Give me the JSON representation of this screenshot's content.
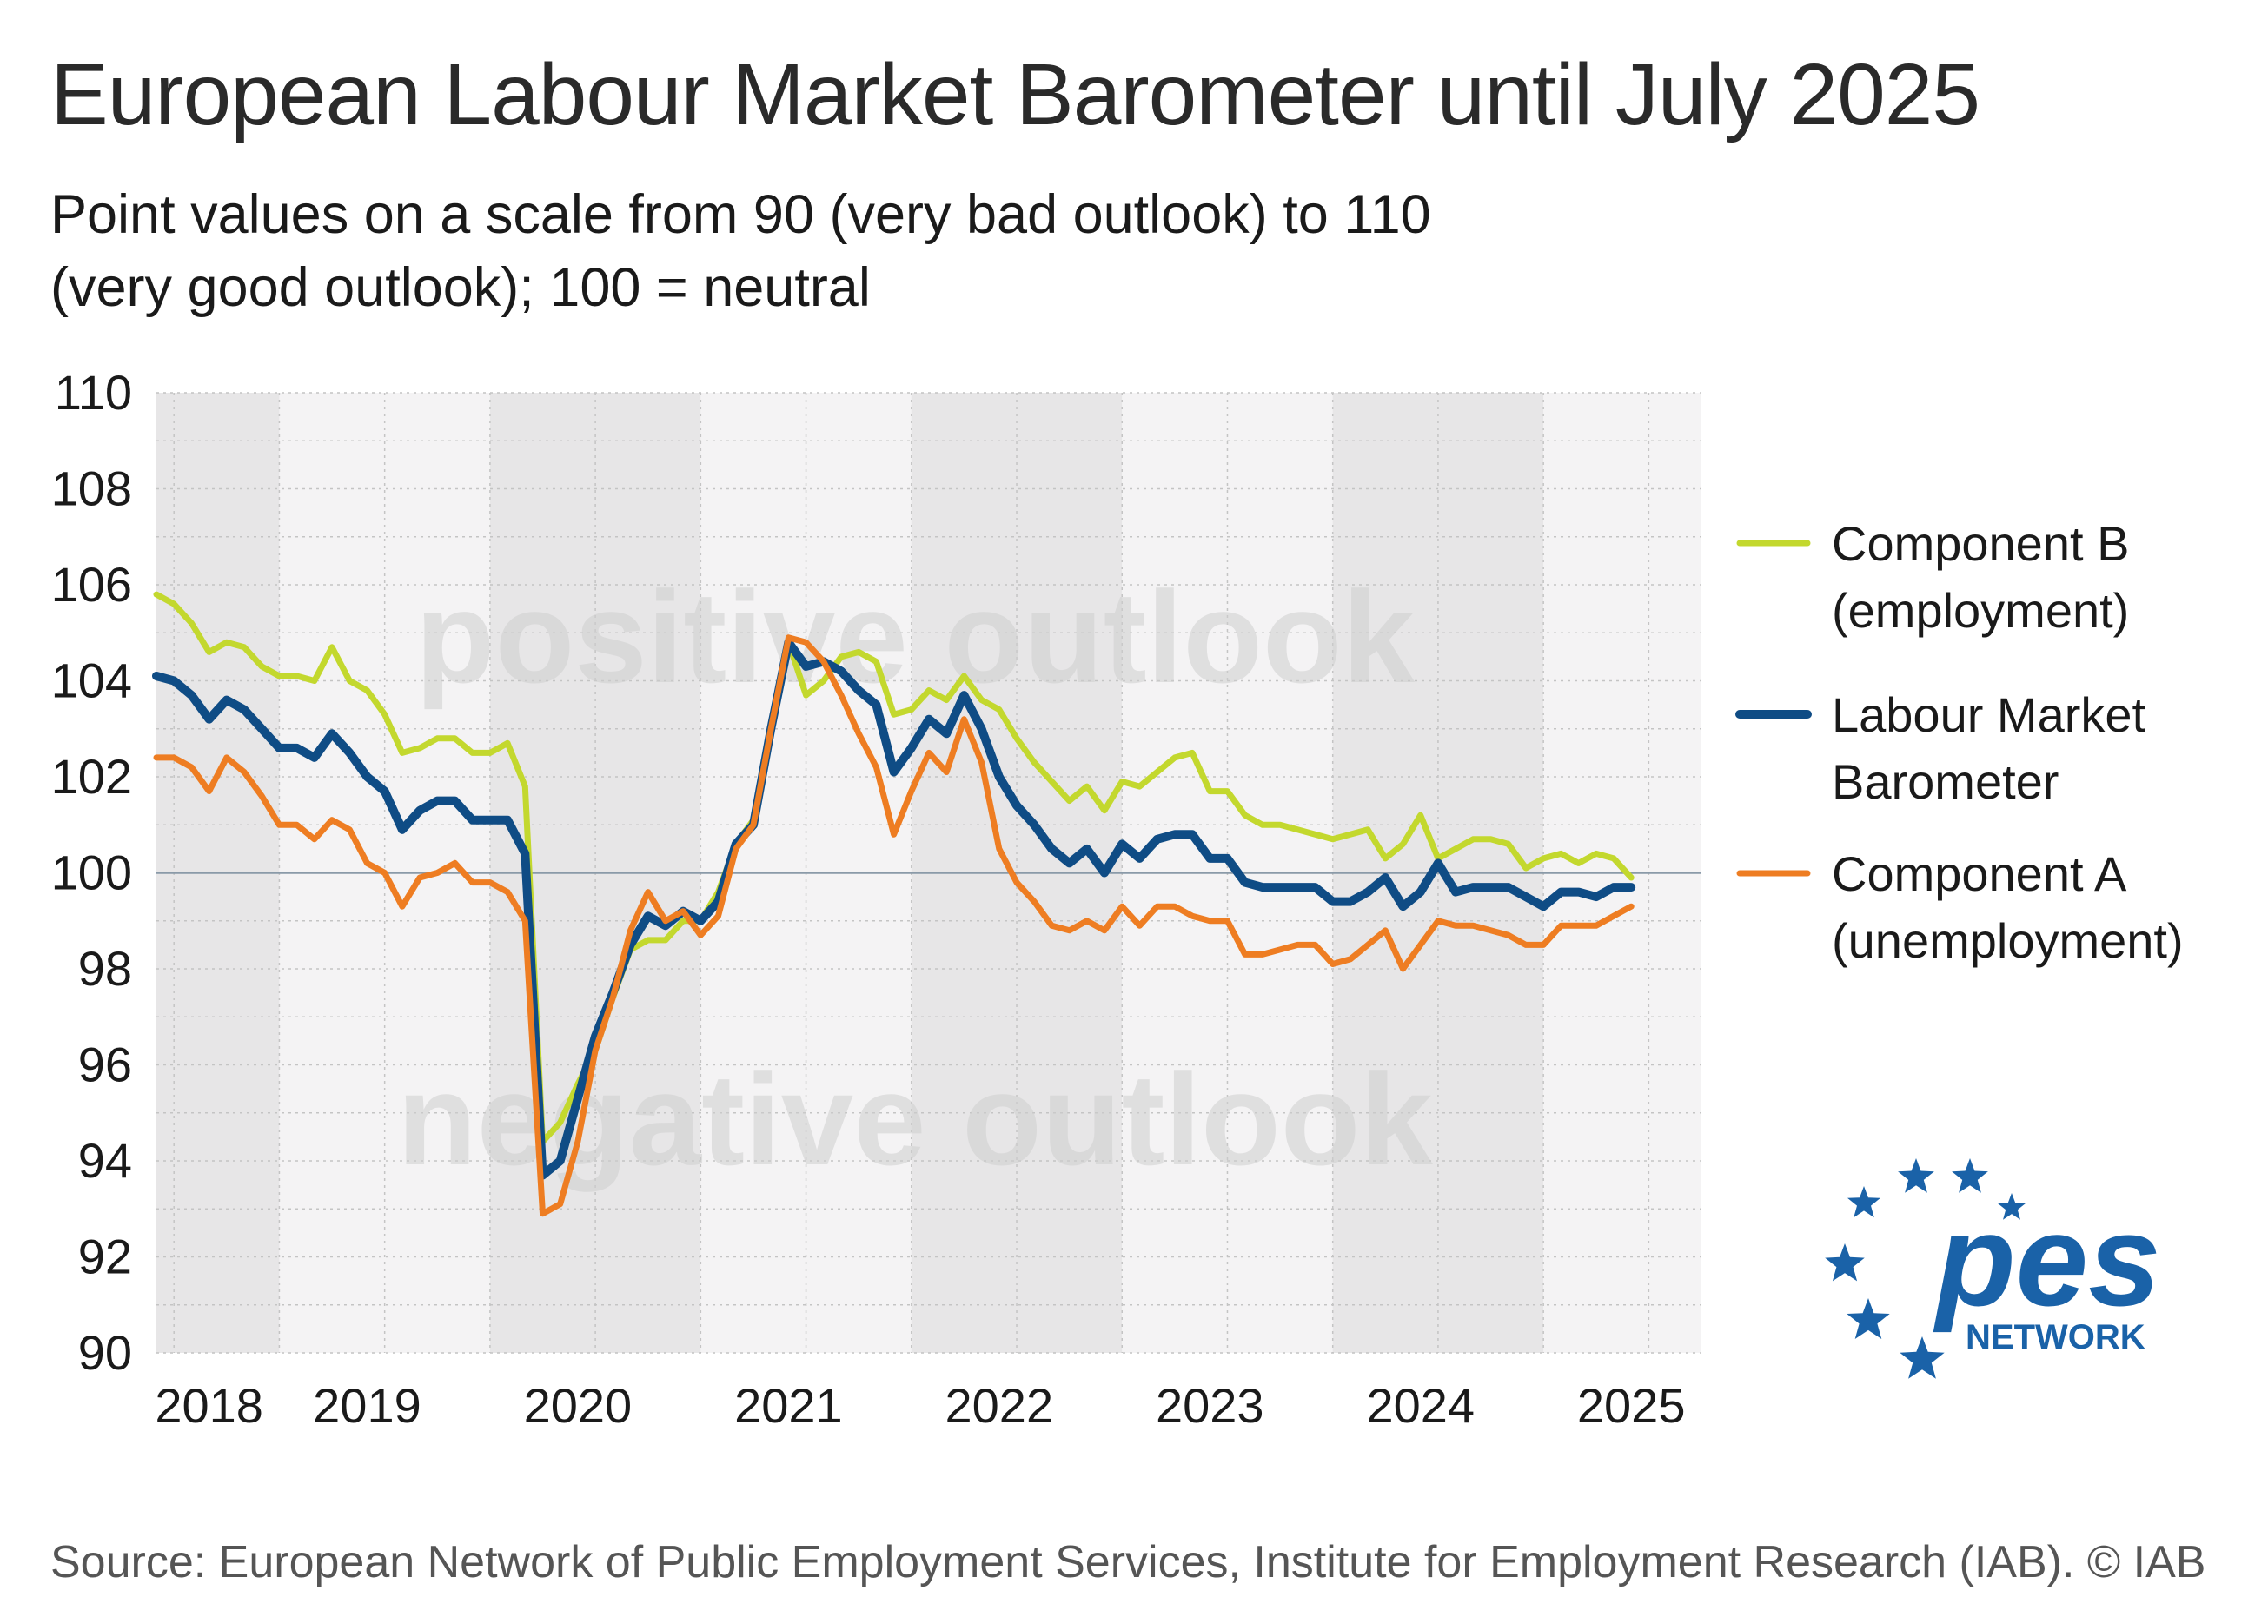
{
  "title": "European Labour Market Barometer until July 2025",
  "subtitle": "Point values on a scale from 90 (very bad outlook) to 110 (very good outlook); 100 = neutral",
  "source": "Source: European Network of Public Employment Services, Institute for Employment Research (IAB). © IAB",
  "watermarks": {
    "positive": "positive outlook",
    "negative": "negative outlook"
  },
  "logo": {
    "text": "pes",
    "subtext": "NETWORK"
  },
  "colors": {
    "component_b": "#c3d82e",
    "barometer": "#0f4c85",
    "component_a": "#ee7d22",
    "reference_line": "#8a9aa8",
    "logo": "#1a62a8"
  },
  "chart_data": {
    "type": "line",
    "ylim": [
      90,
      110
    ],
    "yticks": [
      "90",
      "92",
      "94",
      "96",
      "98",
      "100",
      "102",
      "104",
      "106",
      "108",
      "110"
    ],
    "xlim": [
      "2018-06",
      "2025-10"
    ],
    "xtick_labels": [
      {
        "label": "2018",
        "at": "2018-09"
      },
      {
        "label": "2019",
        "at": "2019-06"
      },
      {
        "label": "2020",
        "at": "2020-06"
      },
      {
        "label": "2021",
        "at": "2021-06"
      },
      {
        "label": "2022",
        "at": "2022-06"
      },
      {
        "label": "2023",
        "at": "2023-06"
      },
      {
        "label": "2024",
        "at": "2024-06"
      },
      {
        "label": "2025",
        "at": "2025-06"
      }
    ],
    "reference_line": 100,
    "grid": true,
    "legend_position": "right",
    "x_start": "2018-06",
    "series": [
      {
        "name": "Component B\n(employment)",
        "key": "component_b",
        "values": [
          105.8,
          105.6,
          105.2,
          104.6,
          104.8,
          104.7,
          104.3,
          104.1,
          104.1,
          104.0,
          104.7,
          104.0,
          103.8,
          103.3,
          102.5,
          102.6,
          102.8,
          102.8,
          102.5,
          102.5,
          102.7,
          101.8,
          94.4,
          94.8,
          95.6,
          96.3,
          97.4,
          98.4,
          98.6,
          98.6,
          99.0,
          99.0,
          99.6,
          100.6,
          101.1,
          103.0,
          104.8,
          103.7,
          104.0,
          104.5,
          104.6,
          104.4,
          103.3,
          103.4,
          103.8,
          103.6,
          104.1,
          103.6,
          103.4,
          102.8,
          102.3,
          101.9,
          101.5,
          101.8,
          101.3,
          101.9,
          101.8,
          102.1,
          102.4,
          102.5,
          101.7,
          101.7,
          101.2,
          101.0,
          101.0,
          100.9,
          100.8,
          100.7,
          100.8,
          100.9,
          100.3,
          100.6,
          101.2,
          100.3,
          100.5,
          100.7,
          100.7,
          100.6,
          100.1,
          100.3,
          100.4,
          100.2,
          100.4,
          100.3,
          99.9
        ]
      },
      {
        "name": "Labour Market\nBarometer",
        "key": "barometer",
        "values": [
          104.1,
          104.0,
          103.7,
          103.2,
          103.6,
          103.4,
          103.0,
          102.6,
          102.6,
          102.4,
          102.9,
          102.5,
          102.0,
          101.7,
          100.9,
          101.3,
          101.5,
          101.5,
          101.1,
          101.1,
          101.1,
          100.4,
          93.7,
          94.0,
          95.3,
          96.6,
          97.5,
          98.5,
          99.1,
          98.9,
          99.2,
          99.0,
          99.4,
          100.6,
          101.0,
          103.0,
          104.8,
          104.3,
          104.4,
          104.2,
          103.8,
          103.5,
          102.1,
          102.6,
          103.2,
          102.9,
          103.7,
          103.0,
          102.0,
          101.4,
          101.0,
          100.5,
          100.2,
          100.5,
          100.0,
          100.6,
          100.3,
          100.7,
          100.8,
          100.8,
          100.3,
          100.3,
          99.8,
          99.7,
          99.7,
          99.7,
          99.7,
          99.4,
          99.4,
          99.6,
          99.9,
          99.3,
          99.6,
          100.2,
          99.6,
          99.7,
          99.7,
          99.7,
          99.5,
          99.3,
          99.6,
          99.6,
          99.5,
          99.7,
          99.7
        ]
      },
      {
        "name": "Component A\n(unemployment)",
        "key": "component_a",
        "values": [
          102.4,
          102.4,
          102.2,
          101.7,
          102.4,
          102.1,
          101.6,
          101.0,
          101.0,
          100.7,
          101.1,
          100.9,
          100.2,
          100.0,
          99.3,
          99.9,
          100.0,
          100.2,
          99.8,
          99.8,
          99.6,
          99.0,
          92.9,
          93.1,
          94.4,
          96.3,
          97.4,
          98.8,
          99.6,
          99.0,
          99.2,
          98.7,
          99.1,
          100.5,
          101.0,
          103.0,
          104.9,
          104.8,
          104.4,
          103.7,
          102.9,
          102.2,
          100.8,
          101.7,
          102.5,
          102.1,
          103.2,
          102.3,
          100.5,
          99.8,
          99.4,
          98.9,
          98.8,
          99.0,
          98.8,
          99.3,
          98.9,
          99.3,
          99.3,
          99.1,
          99.0,
          99.0,
          98.3,
          98.3,
          98.4,
          98.5,
          98.5,
          98.1,
          98.2,
          98.5,
          98.8,
          98.0,
          98.5,
          99.0,
          98.9,
          98.9,
          98.8,
          98.7,
          98.5,
          98.5,
          98.9,
          98.9,
          98.9,
          99.1,
          99.3
        ]
      }
    ]
  }
}
